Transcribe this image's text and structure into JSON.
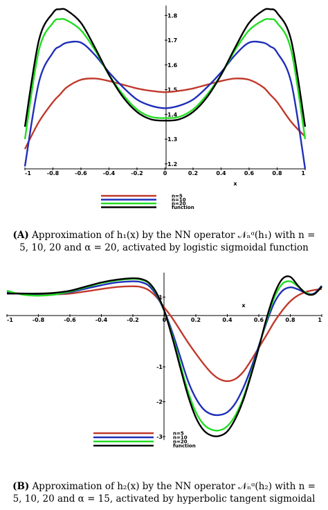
{
  "chart_data": [
    {
      "type": "line",
      "xlabel": "x",
      "ylabel": "",
      "xlim": [
        -1,
        1
      ],
      "ylim": [
        1.18,
        1.84
      ],
      "xticks": [
        "-1",
        "-0.8",
        "-0.6",
        "-0.4",
        "-0.2",
        "0",
        "0.2",
        "0.4",
        "0.6",
        "0.8",
        "1"
      ],
      "xtick_values": [
        -1,
        -0.8,
        -0.6,
        -0.4,
        -0.2,
        0,
        0.2,
        0.4,
        0.6,
        0.8,
        1
      ],
      "yticks": [
        "1.2",
        "1.3",
        "1.4",
        "1.5",
        "1.6",
        "1.7",
        "1.8"
      ],
      "ytick_values": [
        1.2,
        1.3,
        1.4,
        1.5,
        1.6,
        1.7,
        1.8
      ],
      "legend_position": "bottom-left",
      "x": [
        -1,
        -0.9,
        -0.8,
        -0.75,
        -0.7,
        -0.6,
        -0.5,
        -0.4,
        -0.3,
        -0.2,
        -0.1,
        0,
        0.1,
        0.2,
        0.3,
        0.4,
        0.5,
        0.6,
        0.7,
        0.75,
        0.8,
        0.9,
        1
      ],
      "series": [
        {
          "name": "n=5",
          "color": "#c0392b",
          "values": [
            1.26,
            1.37,
            1.45,
            1.48,
            1.51,
            1.54,
            1.545,
            1.535,
            1.52,
            1.505,
            1.495,
            1.49,
            1.495,
            1.505,
            1.52,
            1.535,
            1.545,
            1.54,
            1.51,
            1.48,
            1.45,
            1.37,
            1.31
          ]
        },
        {
          "name": "n=10",
          "color": "#1f2eb8",
          "values": [
            1.19,
            1.53,
            1.65,
            1.675,
            1.69,
            1.69,
            1.64,
            1.57,
            1.51,
            1.46,
            1.435,
            1.425,
            1.435,
            1.46,
            1.51,
            1.57,
            1.64,
            1.69,
            1.69,
            1.675,
            1.65,
            1.53,
            1.18
          ]
        },
        {
          "name": "n=20",
          "color": "#22dd22",
          "values": [
            1.3,
            1.66,
            1.77,
            1.785,
            1.78,
            1.74,
            1.66,
            1.56,
            1.48,
            1.42,
            1.39,
            1.385,
            1.39,
            1.42,
            1.48,
            1.56,
            1.66,
            1.74,
            1.78,
            1.785,
            1.77,
            1.66,
            1.3
          ]
        },
        {
          "name": "function",
          "color": "#000000",
          "values": [
            1.35,
            1.7,
            1.81,
            1.825,
            1.82,
            1.77,
            1.67,
            1.56,
            1.47,
            1.41,
            1.38,
            1.375,
            1.38,
            1.41,
            1.47,
            1.56,
            1.67,
            1.77,
            1.82,
            1.825,
            1.81,
            1.7,
            1.35
          ]
        }
      ]
    },
    {
      "type": "line",
      "xlabel": "x",
      "ylabel": "",
      "xlim": [
        -1,
        1
      ],
      "ylim": [
        -3.1,
        1.7
      ],
      "xticks": [
        "-1",
        "-0.8",
        "-0.6",
        "-0.4",
        "-0.2",
        "0",
        "0.2",
        "0.4",
        "0.6",
        "0.8",
        "1"
      ],
      "xtick_values": [
        -1,
        -0.8,
        -0.6,
        -0.4,
        -0.2,
        0,
        0.2,
        0.4,
        0.6,
        0.8,
        1
      ],
      "yticks": [
        "1",
        "-1",
        "-2",
        "-3"
      ],
      "ytick_values": [
        1,
        -1,
        -2,
        -3
      ],
      "legend_position": "bottom-left",
      "x": [
        -1,
        -0.9,
        -0.8,
        -0.7,
        -0.6,
        -0.5,
        -0.4,
        -0.3,
        -0.2,
        -0.15,
        -0.1,
        -0.05,
        0,
        0.05,
        0.1,
        0.15,
        0.2,
        0.25,
        0.3,
        0.35,
        0.4,
        0.45,
        0.5,
        0.55,
        0.6,
        0.65,
        0.7,
        0.75,
        0.8,
        0.85,
        0.9,
        0.95,
        1
      ],
      "series": [
        {
          "name": "n=5",
          "color": "#c0392b",
          "values": [
            1.12,
            1.1,
            1.08,
            1.08,
            1.1,
            1.16,
            1.23,
            1.29,
            1.31,
            1.29,
            1.2,
            1.0,
            0.7,
            0.4,
            0.05,
            -0.3,
            -0.62,
            -0.92,
            -1.18,
            -1.35,
            -1.41,
            -1.35,
            -1.15,
            -0.82,
            -0.45,
            -0.08,
            0.3,
            0.62,
            0.88,
            1.05,
            1.15,
            1.2,
            1.23
          ]
        },
        {
          "name": "n=10",
          "color": "#1f2eb8",
          "values": [
            1.15,
            1.08,
            1.05,
            1.07,
            1.14,
            1.24,
            1.34,
            1.42,
            1.45,
            1.43,
            1.33,
            1.05,
            0.6,
            0.0,
            -0.7,
            -1.4,
            -1.9,
            -2.22,
            -2.36,
            -2.38,
            -2.3,
            -2.05,
            -1.62,
            -1.05,
            -0.4,
            0.28,
            0.85,
            1.18,
            1.28,
            1.22,
            1.12,
            1.1,
            1.32
          ]
        },
        {
          "name": "n=20",
          "color": "#22dd22",
          "values": [
            1.18,
            1.07,
            1.04,
            1.07,
            1.16,
            1.28,
            1.4,
            1.48,
            1.52,
            1.5,
            1.4,
            1.1,
            0.6,
            -0.1,
            -0.9,
            -1.7,
            -2.3,
            -2.65,
            -2.8,
            -2.82,
            -2.7,
            -2.4,
            -1.9,
            -1.2,
            -0.45,
            0.35,
            1.0,
            1.38,
            1.45,
            1.3,
            1.12,
            1.08,
            1.3
          ]
        },
        {
          "name": "function",
          "color": "#000000",
          "values": [
            1.1,
            1.1,
            1.1,
            1.12,
            1.18,
            1.3,
            1.42,
            1.5,
            1.54,
            1.52,
            1.42,
            1.12,
            0.6,
            -0.15,
            -1.0,
            -1.82,
            -2.45,
            -2.82,
            -2.97,
            -2.98,
            -2.85,
            -2.5,
            -1.97,
            -1.25,
            -0.45,
            0.4,
            1.1,
            1.52,
            1.58,
            1.32,
            1.1,
            1.08,
            1.3
          ]
        }
      ]
    }
  ],
  "captions": [
    {
      "label": "(A)",
      "line1": "Approximation of h₁(x) by the NN operator 𝒩ₙᵅ(h₁) with n =",
      "line2": "5, 10, 20 and α = 20, activated by logistic sigmoidal function"
    },
    {
      "label": "(B)",
      "line1": "Approximation of h₂(x) by the NN operator 𝒩ₙᵅ(h₂) with n =",
      "line2": "5, 10, 20 and α = 15, activated by hyperbolic tangent sigmoidal"
    }
  ]
}
